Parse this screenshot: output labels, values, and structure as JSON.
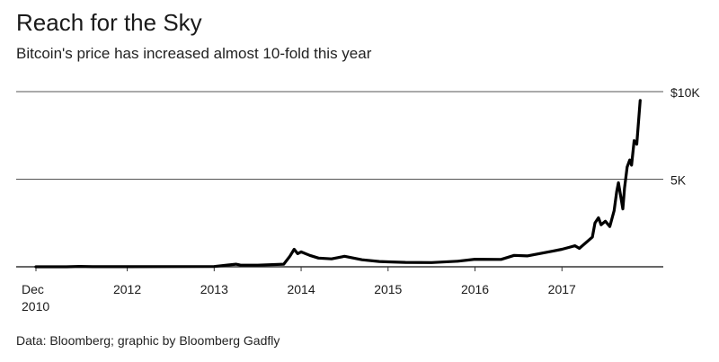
{
  "header": {
    "title": "Reach for the Sky",
    "subtitle": "Bitcoin's price has increased almost 10-fold this year"
  },
  "footer": {
    "source": "Data: Bloomberg; graphic by Bloomberg Gadfly"
  },
  "chart_data": {
    "type": "line",
    "title": "Reach for the Sky",
    "subtitle": "Bitcoin's price has increased almost 10-fold this year",
    "xlabel": "",
    "ylabel": "",
    "xlim": [
      2010.95,
      2018.0
    ],
    "ylim": [
      0,
      10000
    ],
    "y_ticks": [
      {
        "value": 5000,
        "label": "5K"
      },
      {
        "value": 10000,
        "label": "$10K"
      }
    ],
    "x_ticks": [
      {
        "value": 2010.95,
        "label": "Dec",
        "label2": "2010"
      },
      {
        "value": 2012.0,
        "label": "2012"
      },
      {
        "value": 2013.0,
        "label": "2013"
      },
      {
        "value": 2014.0,
        "label": "2014"
      },
      {
        "value": 2015.0,
        "label": "2015"
      },
      {
        "value": 2016.0,
        "label": "2016"
      },
      {
        "value": 2017.0,
        "label": "2017"
      }
    ],
    "grid": "horizontal",
    "series": [
      {
        "color": "#000000",
        "x": [
          2010.95,
          2011.3,
          2011.45,
          2011.6,
          2012.0,
          2012.5,
          2013.0,
          2013.25,
          2013.3,
          2013.5,
          2013.8,
          2013.87,
          2013.92,
          2013.96,
          2014.0,
          2014.1,
          2014.2,
          2014.35,
          2014.5,
          2014.7,
          2014.9,
          2015.0,
          2015.2,
          2015.5,
          2015.8,
          2016.0,
          2016.3,
          2016.45,
          2016.6,
          2016.9,
          2017.0,
          2017.15,
          2017.2,
          2017.35,
          2017.38,
          2017.42,
          2017.45,
          2017.5,
          2017.55,
          2017.6,
          2017.63,
          2017.65,
          2017.7,
          2017.72,
          2017.75,
          2017.78,
          2017.8,
          2017.83,
          2017.86,
          2017.9
        ],
        "y": [
          0,
          0,
          20,
          5,
          5,
          10,
          15,
          150,
          100,
          90,
          150,
          600,
          1000,
          750,
          850,
          650,
          500,
          450,
          600,
          400,
          300,
          280,
          250,
          240,
          320,
          430,
          420,
          650,
          620,
          900,
          1000,
          1200,
          1050,
          1700,
          2500,
          2800,
          2400,
          2600,
          2300,
          3200,
          4300,
          4800,
          3300,
          4500,
          5700,
          6100,
          5800,
          7200,
          7000,
          9500
        ]
      }
    ]
  }
}
